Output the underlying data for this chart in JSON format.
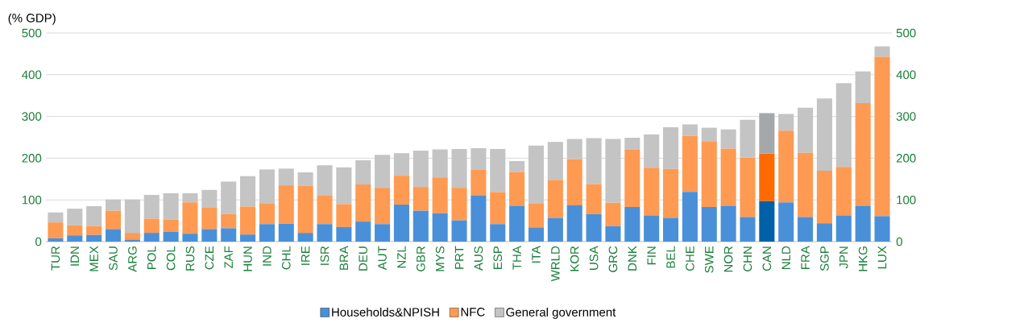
{
  "chart_data": {
    "type": "bar",
    "stacked": true,
    "ylabel": "(% GDP)",
    "categories": [
      "TUR",
      "IDN",
      "MEX",
      "SAU",
      "ARG",
      "POL",
      "COL",
      "RUS",
      "CZE",
      "ZAF",
      "HUN",
      "IND",
      "CHL",
      "IRE",
      "ISR",
      "BRA",
      "DEU",
      "AUT",
      "NZL",
      "GBR",
      "MYS",
      "PRT",
      "AUS",
      "ESP",
      "THA",
      "ITA",
      "WRLD",
      "KOR",
      "USA",
      "GRC",
      "DNK",
      "FIN",
      "BEL",
      "CHE",
      "SWE",
      "NOR",
      "CHN",
      "CAN",
      "NLD",
      "FRA",
      "SGP",
      "JPN",
      "HKG",
      "LUX"
    ],
    "series": [
      {
        "name": "Households&NPISH",
        "color": "#4a90d9",
        "colors": [
          "#4a90d9",
          "#4a90d9",
          "#4a90d9",
          "#4a90d9",
          "#4a90d9",
          "#4a90d9",
          "#4a90d9",
          "#4a90d9",
          "#4a90d9",
          "#4a90d9",
          "#4a90d9",
          "#4a90d9",
          "#4a90d9",
          "#4a90d9",
          "#4a90d9",
          "#4a90d9",
          "#4a90d9",
          "#4a90d9",
          "#4a90d9",
          "#4a90d9",
          "#4a90d9",
          "#4a90d9",
          "#4a90d9",
          "#4a90d9",
          "#4a90d9",
          "#4a90d9",
          "#4a90d9",
          "#4a90d9",
          "#4a90d9",
          "#4a90d9",
          "#4a90d9",
          "#4a90d9",
          "#4a90d9",
          "#4a90d9",
          "#4a90d9",
          "#4a90d9",
          "#4a90d9",
          "#0060a8",
          "#4a90d9",
          "#4a90d9",
          "#4a90d9",
          "#4a90d9",
          "#4a90d9",
          "#4a90d9"
        ],
        "values": [
          8,
          15,
          16,
          30,
          5,
          21,
          24,
          19,
          30,
          32,
          17,
          42,
          43,
          21,
          42,
          35,
          48,
          42,
          89,
          74,
          68,
          51,
          111,
          42,
          86,
          34,
          57,
          87,
          66,
          37,
          83,
          63,
          57,
          119,
          83,
          86,
          59,
          97,
          94,
          59,
          44,
          63,
          86,
          61
        ]
      },
      {
        "name": "NFC",
        "color": "#ff9a52",
        "colors": [
          "#ff9a52",
          "#ff9a52",
          "#ff9a52",
          "#ff9a52",
          "#ff9a52",
          "#ff9a52",
          "#ff9a52",
          "#ff9a52",
          "#ff9a52",
          "#ff9a52",
          "#ff9a52",
          "#ff9a52",
          "#ff9a52",
          "#ff9a52",
          "#ff9a52",
          "#ff9a52",
          "#ff9a52",
          "#ff9a52",
          "#ff9a52",
          "#ff9a52",
          "#ff9a52",
          "#ff9a52",
          "#ff9a52",
          "#ff9a52",
          "#ff9a52",
          "#ff9a52",
          "#ff9a52",
          "#ff9a52",
          "#ff9a52",
          "#ff9a52",
          "#ff9a52",
          "#ff9a52",
          "#ff9a52",
          "#ff9a52",
          "#ff9a52",
          "#ff9a52",
          "#ff9a52",
          "#ff6a00",
          "#ff9a52",
          "#ff9a52",
          "#ff9a52",
          "#ff9a52",
          "#ff9a52",
          "#ff9a52"
        ],
        "values": [
          38,
          24,
          21,
          44,
          16,
          34,
          29,
          75,
          51,
          34,
          67,
          50,
          92,
          113,
          68,
          55,
          89,
          87,
          69,
          57,
          86,
          78,
          61,
          77,
          81,
          58,
          91,
          111,
          72,
          56,
          137,
          114,
          117,
          135,
          158,
          137,
          142,
          114,
          172,
          154,
          126,
          116,
          246,
          382
        ]
      },
      {
        "name": "General government",
        "color": "#c4c4c4",
        "colors": [
          "#c4c4c4",
          "#c4c4c4",
          "#c4c4c4",
          "#c4c4c4",
          "#c4c4c4",
          "#c4c4c4",
          "#c4c4c4",
          "#c4c4c4",
          "#c4c4c4",
          "#c4c4c4",
          "#c4c4c4",
          "#c4c4c4",
          "#c4c4c4",
          "#c4c4c4",
          "#c4c4c4",
          "#c4c4c4",
          "#c4c4c4",
          "#c4c4c4",
          "#c4c4c4",
          "#c4c4c4",
          "#c4c4c4",
          "#c4c4c4",
          "#c4c4c4",
          "#c4c4c4",
          "#c4c4c4",
          "#c4c4c4",
          "#c4c4c4",
          "#c4c4c4",
          "#c4c4c4",
          "#c4c4c4",
          "#c4c4c4",
          "#c4c4c4",
          "#c4c4c4",
          "#c4c4c4",
          "#c4c4c4",
          "#c4c4c4",
          "#c4c4c4",
          "#a5a8ab",
          "#c4c4c4",
          "#c4c4c4",
          "#c4c4c4",
          "#c4c4c4",
          "#c4c4c4",
          "#c4c4c4"
        ],
        "values": [
          24,
          40,
          48,
          27,
          80,
          57,
          63,
          22,
          43,
          78,
          73,
          81,
          40,
          32,
          73,
          88,
          58,
          79,
          54,
          87,
          67,
          93,
          52,
          103,
          26,
          138,
          91,
          48,
          110,
          153,
          29,
          80,
          100,
          27,
          32,
          46,
          91,
          97,
          40,
          108,
          173,
          201,
          76,
          25
        ]
      }
    ],
    "ylim": [
      0,
      500
    ],
    "yticks": [
      0,
      100,
      200,
      300,
      400,
      500
    ],
    "y2lim": [
      0,
      500
    ],
    "y2ticks": [
      0,
      100,
      200,
      300,
      400,
      500
    ],
    "grid": "y",
    "legend": "bottom"
  }
}
